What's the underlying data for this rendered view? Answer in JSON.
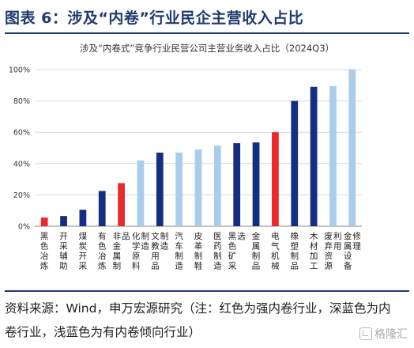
{
  "figure": {
    "title": "图表 6：涉及“内卷”行业民企主营收入占比"
  },
  "chart_data": {
    "type": "bar",
    "title": "涉及“内卷式”竞争行业民营公司主营业务收入占比（2024Q3）",
    "xlabel": "",
    "ylabel": "",
    "ylim": [
      0,
      100
    ],
    "y_ticks": [
      "0%",
      "20%",
      "40%",
      "60%",
      "80%",
      "100%"
    ],
    "grid": true,
    "categories": [
      "黑色冶炼",
      "开采辅助",
      "煤炭开采",
      "有色冶炼",
      "非金属制品",
      "化学原料制造",
      "文教用品制造",
      "汽车制造",
      "皮革制鞋",
      "医药制造",
      "黑色矿采选",
      "金属制品",
      "电气机械",
      "橡塑制品",
      "木材加工",
      "废弃资源利用",
      "金属设备修理"
    ],
    "values": [
      5.5,
      6.5,
      10.5,
      22.5,
      27.5,
      42,
      47,
      47,
      49,
      51.5,
      53,
      53.5,
      60,
      80,
      89,
      89.5,
      100
    ],
    "groups": [
      "red",
      "navy",
      "navy",
      "navy",
      "red",
      "light",
      "navy",
      "light",
      "light",
      "light",
      "navy",
      "navy",
      "red",
      "navy",
      "navy",
      "light",
      "light"
    ],
    "colors": {
      "red": "#ea2a2a",
      "navy": "#142f82",
      "light": "#a9cdea"
    }
  },
  "source": {
    "text": "资料来源：Wind，申万宏源研究（注：红色为强内卷行业，深蓝色为内卷行业，浅蓝色为有内卷倾向行业）"
  },
  "watermark": {
    "text": "格隆汇"
  }
}
